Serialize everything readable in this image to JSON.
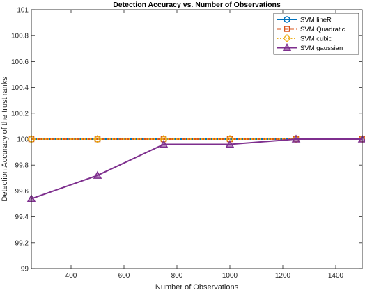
{
  "chart_data": {
    "type": "line",
    "title": "Detection Accuracy vs. Number of Observations",
    "xlabel": "Number of Observations",
    "ylabel": "Detection Accuracy of the trust ranks",
    "xlim": [
      250,
      1500
    ],
    "ylim": [
      99,
      101
    ],
    "xticks": [
      400,
      600,
      800,
      1000,
      1200,
      1400
    ],
    "yticks": [
      99,
      99.2,
      99.4,
      99.6,
      99.8,
      100,
      100.2,
      100.4,
      100.6,
      100.8,
      101
    ],
    "grid": false,
    "legend_position": "top-right",
    "x": [
      250,
      500,
      750,
      1000,
      1250,
      1500
    ],
    "series": [
      {
        "name": "SVM lineR",
        "color": "#0072BD",
        "dash": "solid",
        "marker": "circle",
        "values": [
          100,
          100,
          100,
          100,
          100,
          100
        ]
      },
      {
        "name": "SVM Quadratic",
        "color": "#D95319",
        "dash": "dashed",
        "marker": "square",
        "values": [
          100,
          100,
          100,
          100,
          100,
          100
        ]
      },
      {
        "name": "SVM cubic",
        "color": "#EDB120",
        "dash": "dotted",
        "marker": "diamond",
        "values": [
          100,
          100,
          100,
          100,
          100,
          100
        ]
      },
      {
        "name": "SVM gaussian",
        "color": "#7E2F8E",
        "dash": "solid",
        "marker": "triangle",
        "values": [
          99.54,
          99.72,
          99.96,
          99.96,
          100,
          100
        ]
      }
    ]
  }
}
